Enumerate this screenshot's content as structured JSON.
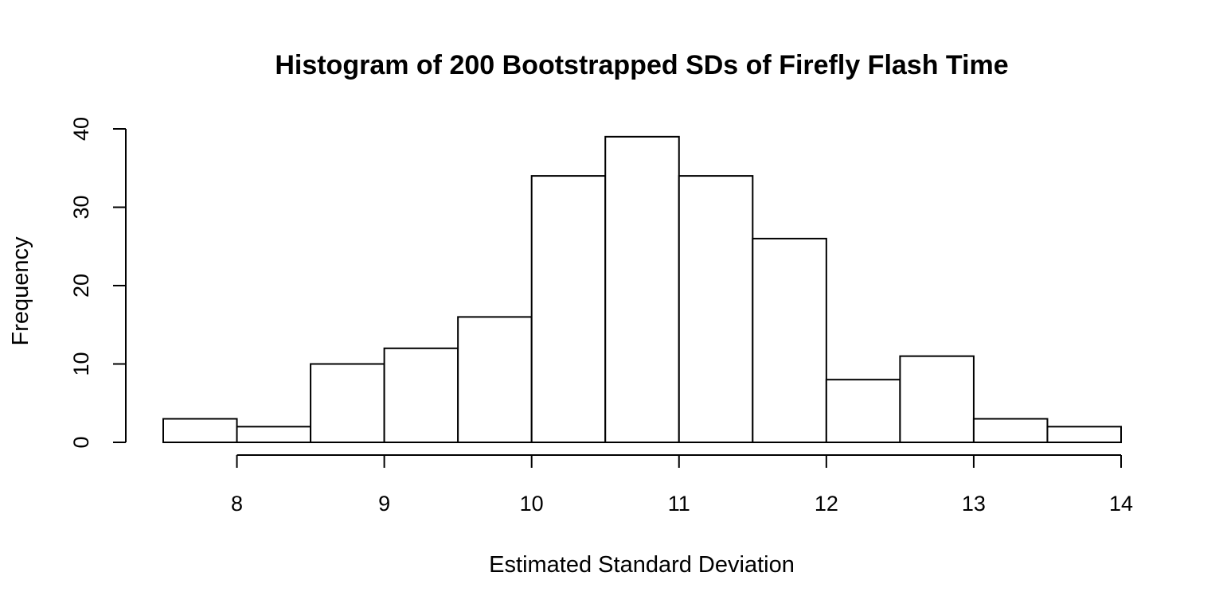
{
  "chart_data": {
    "type": "bar",
    "title": "Histogram of 200 Bootstrapped SDs of Firefly Flash Time",
    "xlabel": "Estimated Standard Deviation",
    "ylabel": "Frequency",
    "bin_edges": [
      7.5,
      8.0,
      8.5,
      9.0,
      9.5,
      10.0,
      10.5,
      11.0,
      11.5,
      12.0,
      12.5,
      13.0,
      13.5,
      14.0
    ],
    "values": [
      3,
      2,
      10,
      12,
      16,
      34,
      39,
      34,
      26,
      8,
      11,
      3,
      2
    ],
    "xlim": [
      7.5,
      14
    ],
    "ylim": [
      0,
      40
    ],
    "x_ticks": [
      8,
      9,
      10,
      11,
      12,
      13,
      14
    ],
    "x_tick_labels": [
      "8",
      "9",
      "10",
      "11",
      "12",
      "13",
      "14"
    ],
    "y_ticks": [
      0,
      10,
      20,
      30,
      40
    ],
    "y_tick_labels": [
      "0",
      "10",
      "20",
      "30",
      "40"
    ],
    "grid": false,
    "legend": "none"
  }
}
